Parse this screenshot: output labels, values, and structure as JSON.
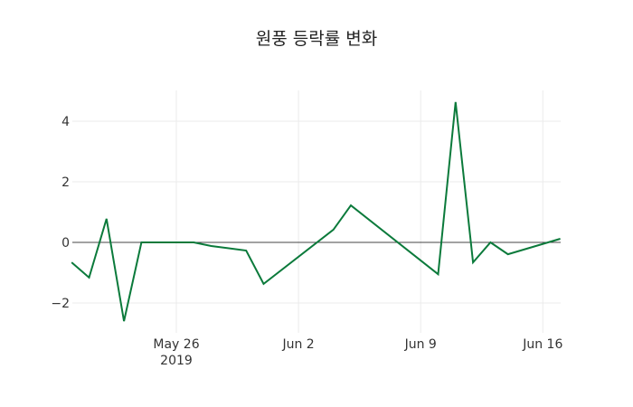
{
  "chart_data": {
    "type": "line",
    "title": "원풍 등락률 변화",
    "xlabel": "",
    "ylabel": "",
    "x_tick_labels": [
      "May 26\n2019",
      "Jun 2",
      "Jun 9",
      "Jun 16"
    ],
    "y_tick_labels": [
      "−2",
      "0",
      "2",
      "4"
    ],
    "yticks": [
      -2,
      0,
      2,
      4
    ],
    "ylim": [
      -2.9,
      5.0
    ],
    "xlim": [
      "2019-05-20",
      "2019-06-17"
    ],
    "grid": true,
    "legend": null,
    "line_color": "#0b7a3b",
    "series": [
      {
        "name": "등락률",
        "x": [
          "2019-05-20",
          "2019-05-21",
          "2019-05-22",
          "2019-05-23",
          "2019-05-24",
          "2019-05-27",
          "2019-05-28",
          "2019-05-30",
          "2019-05-31",
          "2019-06-04",
          "2019-06-05",
          "2019-06-10",
          "2019-06-11",
          "2019-06-12",
          "2019-06-13",
          "2019-06-14",
          "2019-06-17"
        ],
        "values": [
          -0.66,
          -1.16,
          0.78,
          -2.6,
          0.0,
          0.0,
          -0.12,
          -0.27,
          -1.37,
          0.42,
          1.22,
          -1.05,
          4.63,
          -0.66,
          0.0,
          -0.39,
          0.12
        ]
      }
    ]
  },
  "title": "원풍 등락률 변화",
  "xaxis": {
    "ticks": [
      {
        "label": "May 26",
        "sub": "2019",
        "date": "2019-05-26"
      },
      {
        "label": "Jun 2",
        "date": "2019-06-02"
      },
      {
        "label": "Jun 9",
        "date": "2019-06-09"
      },
      {
        "label": "Jun 16",
        "date": "2019-06-16"
      }
    ]
  },
  "yaxis": {
    "ticks": [
      {
        "label": "4",
        "v": 4
      },
      {
        "label": "2",
        "v": 2
      },
      {
        "label": "0",
        "v": 0
      },
      {
        "label": "−2",
        "v": -2
      }
    ]
  }
}
